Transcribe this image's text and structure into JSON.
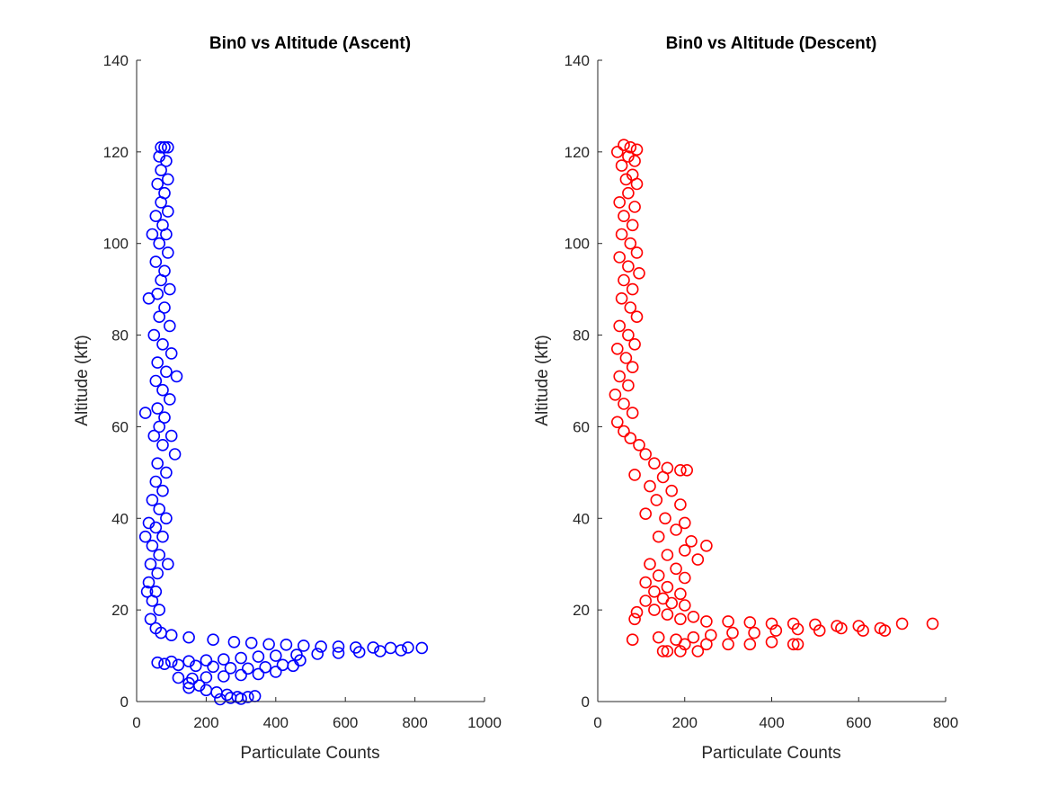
{
  "chart_data": [
    {
      "type": "scatter",
      "title": "Bin0 vs Altitude (Ascent)",
      "xlabel": "Particulate Counts",
      "ylabel": "Altitude (kft)",
      "xlim": [
        0,
        1000
      ],
      "ylim": [
        0,
        140
      ],
      "xticks": [
        "0",
        "200",
        "400",
        "600",
        "800",
        "1000"
      ],
      "yticks": [
        "0",
        "20",
        "40",
        "60",
        "80",
        "100",
        "120",
        "140"
      ],
      "grid": false,
      "marker": "circle-open",
      "color": "#0000ff",
      "series": [
        {
          "points": [
            [
              70,
              121
            ],
            [
              80,
              121
            ],
            [
              90,
              121
            ],
            [
              65,
              119
            ],
            [
              85,
              118
            ],
            [
              70,
              116
            ],
            [
              90,
              114
            ],
            [
              60,
              113
            ],
            [
              80,
              111
            ],
            [
              70,
              109
            ],
            [
              90,
              107
            ],
            [
              55,
              106
            ],
            [
              75,
              104
            ],
            [
              85,
              102
            ],
            [
              45,
              102
            ],
            [
              65,
              100
            ],
            [
              90,
              98
            ],
            [
              55,
              96
            ],
            [
              80,
              94
            ],
            [
              70,
              92
            ],
            [
              95,
              90
            ],
            [
              60,
              89
            ],
            [
              35,
              88
            ],
            [
              80,
              86
            ],
            [
              65,
              84
            ],
            [
              95,
              82
            ],
            [
              50,
              80
            ],
            [
              75,
              78
            ],
            [
              100,
              76
            ],
            [
              60,
              74
            ],
            [
              85,
              72
            ],
            [
              115,
              71
            ],
            [
              55,
              70
            ],
            [
              75,
              68
            ],
            [
              95,
              66
            ],
            [
              60,
              64
            ],
            [
              25,
              63
            ],
            [
              80,
              62
            ],
            [
              65,
              60
            ],
            [
              100,
              58
            ],
            [
              50,
              58
            ],
            [
              75,
              56
            ],
            [
              110,
              54
            ],
            [
              60,
              52
            ],
            [
              85,
              50
            ],
            [
              55,
              48
            ],
            [
              75,
              46
            ],
            [
              45,
              44
            ],
            [
              65,
              42
            ],
            [
              85,
              40
            ],
            [
              35,
              39
            ],
            [
              55,
              38
            ],
            [
              75,
              36
            ],
            [
              25,
              36
            ],
            [
              45,
              34
            ],
            [
              65,
              32
            ],
            [
              90,
              30
            ],
            [
              40,
              30
            ],
            [
              60,
              28
            ],
            [
              35,
              26
            ],
            [
              55,
              24
            ],
            [
              30,
              24
            ],
            [
              45,
              22
            ],
            [
              65,
              20
            ],
            [
              40,
              18
            ],
            [
              55,
              16
            ],
            [
              70,
              15
            ],
            [
              100,
              14.5
            ],
            [
              150,
              14
            ],
            [
              220,
              13.5
            ],
            [
              280,
              13
            ],
            [
              330,
              12.8
            ],
            [
              380,
              12.5
            ],
            [
              430,
              12.4
            ],
            [
              480,
              12.2
            ],
            [
              530,
              12
            ],
            [
              580,
              12
            ],
            [
              630,
              11.8
            ],
            [
              680,
              11.8
            ],
            [
              730,
              11.7
            ],
            [
              780,
              11.8
            ],
            [
              820,
              11.7
            ],
            [
              760,
              11.2
            ],
            [
              700,
              11
            ],
            [
              640,
              10.8
            ],
            [
              580,
              10.6
            ],
            [
              520,
              10.4
            ],
            [
              460,
              10.2
            ],
            [
              400,
              10
            ],
            [
              350,
              9.8
            ],
            [
              300,
              9.5
            ],
            [
              250,
              9.2
            ],
            [
              200,
              9
            ],
            [
              150,
              8.8
            ],
            [
              100,
              8.7
            ],
            [
              60,
              8.5
            ],
            [
              80,
              8.2
            ],
            [
              120,
              8
            ],
            [
              170,
              7.8
            ],
            [
              220,
              7.6
            ],
            [
              270,
              7.3
            ],
            [
              320,
              7.2
            ],
            [
              370,
              7.5
            ],
            [
              420,
              8
            ],
            [
              470,
              9
            ],
            [
              450,
              7.8
            ],
            [
              400,
              6.5
            ],
            [
              350,
              6
            ],
            [
              300,
              5.8
            ],
            [
              250,
              5.5
            ],
            [
              200,
              5.3
            ],
            [
              160,
              5
            ],
            [
              120,
              5.2
            ],
            [
              150,
              4
            ],
            [
              180,
              3.5
            ],
            [
              150,
              3
            ],
            [
              200,
              2.5
            ],
            [
              230,
              2
            ],
            [
              260,
              1.5
            ],
            [
              290,
              1
            ],
            [
              320,
              1
            ],
            [
              340,
              1.2
            ],
            [
              300,
              0.6
            ],
            [
              270,
              0.8
            ],
            [
              240,
              0.5
            ]
          ]
        }
      ]
    },
    {
      "type": "scatter",
      "title": "Bin0 vs Altitude (Descent)",
      "xlabel": "Particulate Counts",
      "ylabel": "Altitude (kft)",
      "xlim": [
        0,
        800
      ],
      "ylim": [
        0,
        140
      ],
      "xticks": [
        "0",
        "200",
        "400",
        "600",
        "800"
      ],
      "yticks": [
        "0",
        "20",
        "40",
        "60",
        "80",
        "100",
        "120",
        "140"
      ],
      "grid": false,
      "marker": "circle-open",
      "color": "#ff0000",
      "series": [
        {
          "points": [
            [
              60,
              121.5
            ],
            [
              75,
              121
            ],
            [
              90,
              120.5
            ],
            [
              45,
              120
            ],
            [
              70,
              119
            ],
            [
              85,
              118
            ],
            [
              55,
              117
            ],
            [
              80,
              115
            ],
            [
              65,
              114
            ],
            [
              90,
              113
            ],
            [
              70,
              111
            ],
            [
              50,
              109
            ],
            [
              85,
              108
            ],
            [
              60,
              106
            ],
            [
              80,
              104
            ],
            [
              55,
              102
            ],
            [
              75,
              100
            ],
            [
              90,
              98
            ],
            [
              50,
              97
            ],
            [
              70,
              95
            ],
            [
              95,
              93.5
            ],
            [
              60,
              92
            ],
            [
              80,
              90
            ],
            [
              55,
              88
            ],
            [
              75,
              86
            ],
            [
              90,
              84
            ],
            [
              50,
              82
            ],
            [
              70,
              80
            ],
            [
              85,
              78
            ],
            [
              45,
              77
            ],
            [
              65,
              75
            ],
            [
              80,
              73
            ],
            [
              50,
              71
            ],
            [
              70,
              69
            ],
            [
              40,
              67
            ],
            [
              60,
              65
            ],
            [
              80,
              63
            ],
            [
              45,
              61
            ],
            [
              60,
              59
            ],
            [
              75,
              57.5
            ],
            [
              95,
              56
            ],
            [
              110,
              54
            ],
            [
              130,
              52
            ],
            [
              160,
              51
            ],
            [
              190,
              50.5
            ],
            [
              205,
              50.5
            ],
            [
              85,
              49.5
            ],
            [
              150,
              49
            ],
            [
              120,
              47
            ],
            [
              170,
              46
            ],
            [
              135,
              44
            ],
            [
              190,
              43
            ],
            [
              110,
              41
            ],
            [
              155,
              40
            ],
            [
              200,
              39
            ],
            [
              180,
              37.5
            ],
            [
              140,
              36
            ],
            [
              215,
              35
            ],
            [
              250,
              34
            ],
            [
              200,
              33
            ],
            [
              160,
              32
            ],
            [
              230,
              31
            ],
            [
              120,
              30
            ],
            [
              180,
              29
            ],
            [
              140,
              27.5
            ],
            [
              200,
              27
            ],
            [
              110,
              26
            ],
            [
              160,
              25
            ],
            [
              130,
              24
            ],
            [
              190,
              23.5
            ],
            [
              150,
              22.5
            ],
            [
              110,
              22
            ],
            [
              170,
              21.5
            ],
            [
              200,
              21
            ],
            [
              130,
              20
            ],
            [
              90,
              19.5
            ],
            [
              160,
              19
            ],
            [
              220,
              18.5
            ],
            [
              190,
              18
            ],
            [
              85,
              18
            ],
            [
              250,
              17.5
            ],
            [
              300,
              17.5
            ],
            [
              350,
              17.3
            ],
            [
              400,
              17
            ],
            [
              450,
              17
            ],
            [
              500,
              16.8
            ],
            [
              550,
              16.5
            ],
            [
              600,
              16.5
            ],
            [
              650,
              16
            ],
            [
              700,
              17
            ],
            [
              770,
              17
            ],
            [
              660,
              15.5
            ],
            [
              610,
              15.5
            ],
            [
              560,
              16
            ],
            [
              510,
              15.5
            ],
            [
              460,
              15.8
            ],
            [
              410,
              15.5
            ],
            [
              360,
              15
            ],
            [
              310,
              15
            ],
            [
              260,
              14.5
            ],
            [
              220,
              14
            ],
            [
              180,
              13.5
            ],
            [
              140,
              14
            ],
            [
              80,
              13.5
            ],
            [
              200,
              12.5
            ],
            [
              250,
              12.5
            ],
            [
              300,
              12.5
            ],
            [
              350,
              12.5
            ],
            [
              400,
              13
            ],
            [
              450,
              12.5
            ],
            [
              460,
              12.5
            ],
            [
              230,
              11
            ],
            [
              190,
              11
            ],
            [
              160,
              11
            ],
            [
              150,
              11
            ]
          ]
        }
      ]
    }
  ]
}
